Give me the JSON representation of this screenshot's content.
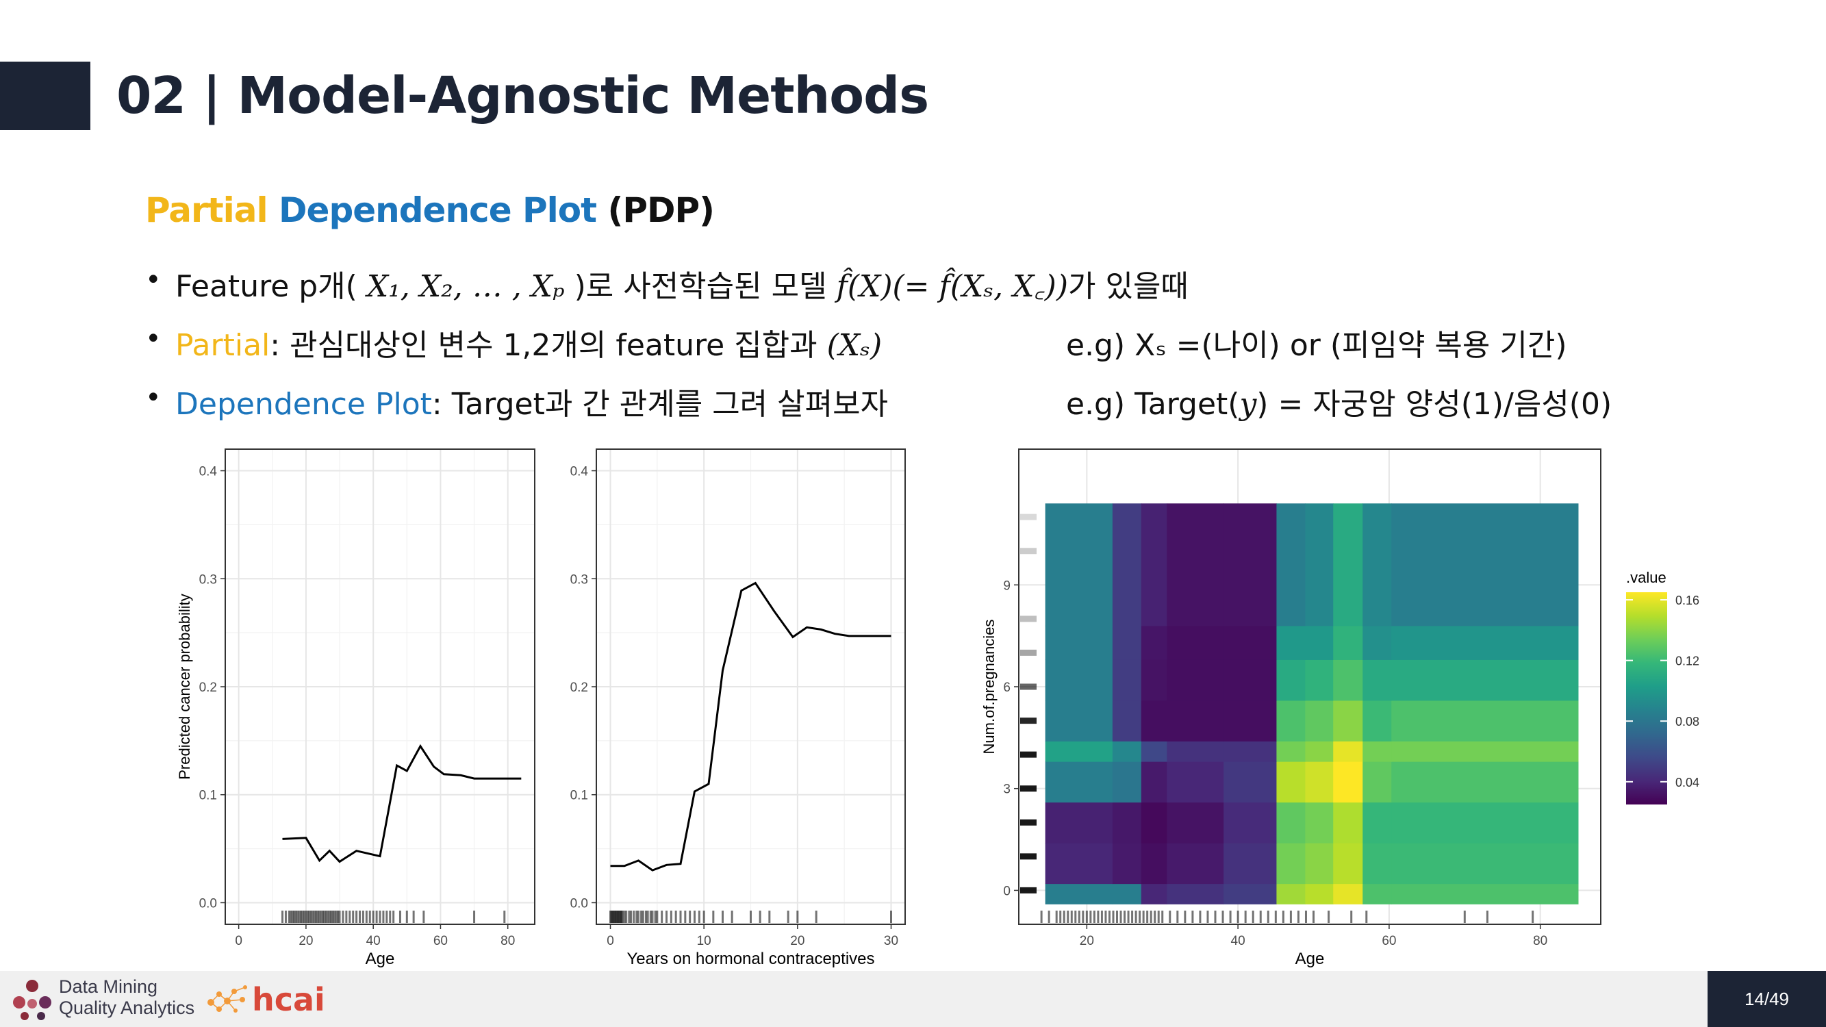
{
  "slide": {
    "title": "02 | Model-Agnostic Methods",
    "subtitle": {
      "part1": "Partial",
      "part2": "Dependence Plot",
      "part3": "(PDP)"
    },
    "colors": {
      "navy": "#1c2435",
      "yellow": "#f2b619",
      "blue": "#1c75bc"
    },
    "bullets": {
      "b1": {
        "prefix": "Feature p개(",
        "math1": "X₁, X₂, … , Xₚ",
        "mid": ")로 사전학습된 모델",
        "math2": "f̂(X)(= f̂(Xₛ, X꜀))",
        "suffix": "가 있을때"
      },
      "b2": {
        "key": "Partial",
        "text": ": 관심대상인 변수 1,2개의 feature 집합과",
        "math": "(Xₛ)",
        "eg": "e.g)  Xₛ =(나이) or (피임약 복용 기간)"
      },
      "b3": {
        "key": "Dependence Plot",
        "text": ": Target과 간 관계를 그려 살펴보자",
        "eg_pre": "e.g) Target(",
        "eg_math": "y",
        "eg_post": ") = 자궁암 양성(1)/음성(0)"
      }
    },
    "bullet_symbol": "•",
    "footer": {
      "logo_line1": "Data Mining",
      "logo_line2": "Quality Analytics",
      "logo2": "hcai",
      "page": "14/49"
    }
  },
  "chart_data": [
    {
      "type": "line",
      "xlabel": "Age",
      "ylabel": "Predicted cancer probability",
      "xlim": [
        -4,
        88
      ],
      "ylim": [
        -0.02,
        0.42
      ],
      "xticks": [
        0,
        20,
        40,
        60,
        80
      ],
      "yticks": [
        0.0,
        0.1,
        0.2,
        0.3,
        0.4
      ],
      "xtick_labels": [
        "0",
        "20",
        "40",
        "60",
        "80"
      ],
      "ytick_labels": [
        "0.0",
        "0.1",
        "0.2",
        "0.3",
        "0.4"
      ],
      "x": [
        13,
        20,
        24,
        27,
        30,
        35,
        42,
        47,
        50,
        54,
        58,
        61,
        66,
        70,
        75,
        84
      ],
      "y": [
        0.059,
        0.06,
        0.039,
        0.048,
        0.038,
        0.048,
        0.043,
        0.127,
        0.122,
        0.145,
        0.126,
        0.119,
        0.118,
        0.115,
        0.115,
        0.115
      ],
      "rug": [
        13,
        14,
        15,
        15.5,
        16,
        16.5,
        17,
        17.5,
        18,
        18.5,
        19,
        19.5,
        20,
        20.5,
        21,
        21.5,
        22,
        22.5,
        23,
        23.5,
        24,
        24.5,
        25,
        25.5,
        26,
        26.5,
        27,
        27.5,
        28,
        28.5,
        29,
        29.5,
        30,
        31,
        32,
        33,
        34,
        35,
        36,
        37,
        38,
        39,
        40,
        41,
        42,
        43,
        44,
        45,
        46,
        48,
        50,
        52,
        55,
        70,
        79
      ],
      "grid": true
    },
    {
      "type": "line",
      "xlabel": "Years on hormonal contraceptives",
      "ylabel": "",
      "xlim": [
        -1.5,
        31.5
      ],
      "ylim": [
        -0.02,
        0.42
      ],
      "xticks": [
        0,
        10,
        20,
        30
      ],
      "yticks": [
        0.0,
        0.1,
        0.2,
        0.3,
        0.4
      ],
      "xtick_labels": [
        "0",
        "10",
        "20",
        "30"
      ],
      "ytick_labels": [
        "0.0",
        "0.1",
        "0.2",
        "0.3",
        "0.4"
      ],
      "x": [
        0,
        1.5,
        3,
        4.5,
        6,
        7.5,
        9,
        10.5,
        12,
        14,
        15.5,
        17.5,
        19.5,
        21,
        22.5,
        24,
        25.5,
        28,
        30
      ],
      "y": [
        0.034,
        0.034,
        0.039,
        0.03,
        0.035,
        0.036,
        0.103,
        0.11,
        0.215,
        0.289,
        0.296,
        0.27,
        0.246,
        0.255,
        0.253,
        0.249,
        0.247,
        0.247,
        0.247
      ],
      "rug": [
        0,
        0.1,
        0.2,
        0.3,
        0.4,
        0.5,
        0.6,
        0.7,
        0.8,
        0.9,
        1,
        1.1,
        1.2,
        1.3,
        1.5,
        1.7,
        2,
        2.2,
        2.5,
        2.8,
        3,
        3.3,
        3.5,
        3.8,
        4,
        4.3,
        4.5,
        4.8,
        5,
        5.5,
        6,
        6.5,
        7,
        7.5,
        8,
        8.5,
        9,
        9.5,
        10,
        11,
        12,
        13,
        15,
        16,
        17,
        19,
        20,
        22,
        30
      ],
      "grid": true
    },
    {
      "type": "heatmap",
      "xlabel": "Age",
      "ylabel": "Num.of.pregnancies",
      "xlim": [
        11,
        88
      ],
      "ylim": [
        -1,
        13
      ],
      "xticks": [
        20,
        40,
        60,
        80
      ],
      "yticks": [
        0,
        3,
        6,
        9
      ],
      "xtick_labels": [
        "20",
        "40",
        "60",
        "80"
      ],
      "ytick_labels": [
        "0",
        "3",
        "6",
        "9"
      ],
      "x_edges": [
        14.5,
        23.4,
        27.2,
        30.6,
        38.1,
        45.1,
        48.9,
        52.6,
        56.5,
        60.3,
        85
      ],
      "y_edges": [
        -0.4,
        0.2,
        1.4,
        2.6,
        3.8,
        4.4,
        5.6,
        6.8,
        7.8,
        11.4
      ],
      "rows": [
        {
          "y": [
            -0.4,
            0.2
          ],
          "values": [
            0.085,
            0.085,
            0.04,
            0.045,
            0.05,
            0.145,
            0.15,
            0.16,
            0.125,
            0.125
          ]
        },
        {
          "y": [
            0.2,
            1.4
          ],
          "values": [
            0.04,
            0.035,
            0.03,
            0.035,
            0.045,
            0.135,
            0.14,
            0.15,
            0.12,
            0.12
          ]
        },
        {
          "y": [
            1.4,
            2.6
          ],
          "values": [
            0.038,
            0.034,
            0.028,
            0.032,
            0.042,
            0.13,
            0.135,
            0.148,
            0.118,
            0.118
          ]
        },
        {
          "y": [
            2.6,
            3.8
          ],
          "values": [
            0.085,
            0.08,
            0.035,
            0.04,
            0.048,
            0.15,
            0.155,
            0.165,
            0.13,
            0.125
          ]
        },
        {
          "y": [
            3.8,
            4.4
          ],
          "values": [
            0.105,
            0.09,
            0.055,
            0.045,
            0.045,
            0.135,
            0.14,
            0.16,
            0.135,
            0.135
          ]
        },
        {
          "y": [
            4.4,
            5.6
          ],
          "values": [
            0.085,
            0.05,
            0.03,
            0.03,
            0.03,
            0.125,
            0.13,
            0.14,
            0.12,
            0.125
          ]
        },
        {
          "y": [
            5.6,
            6.8
          ],
          "values": [
            0.085,
            0.05,
            0.032,
            0.03,
            0.03,
            0.11,
            0.115,
            0.125,
            0.11,
            0.11
          ]
        },
        {
          "y": [
            6.8,
            7.8
          ],
          "values": [
            0.085,
            0.05,
            0.033,
            0.03,
            0.03,
            0.1,
            0.1,
            0.115,
            0.095,
            0.098
          ]
        },
        {
          "y": [
            7.8,
            11.4
          ],
          "values": [
            0.085,
            0.05,
            0.038,
            0.032,
            0.032,
            0.085,
            0.09,
            0.11,
            0.09,
            0.085
          ]
        }
      ],
      "legend": {
        "title": ".value",
        "ticks": [
          0.04,
          0.08,
          0.12,
          0.16
        ],
        "tick_labels": [
          "0.04",
          "0.08",
          "0.12",
          "0.16"
        ],
        "min": 0.025,
        "max": 0.165,
        "placement": "right"
      },
      "rug_x": [
        14,
        15,
        16,
        16.5,
        17,
        17.5,
        18,
        18.5,
        19,
        19.5,
        20,
        20.5,
        21,
        21.5,
        22,
        22.5,
        23,
        23.5,
        24,
        24.5,
        25,
        25.5,
        26,
        26.5,
        27,
        27.5,
        28,
        28.5,
        29,
        29.5,
        30,
        31,
        32,
        33,
        34,
        35,
        36,
        37,
        38,
        39,
        40,
        41,
        42,
        43,
        44,
        45,
        46,
        47,
        48,
        49,
        50,
        52,
        55,
        57,
        70,
        73,
        79
      ],
      "rug_y": [
        0,
        1,
        2,
        3,
        4,
        5,
        6,
        7,
        8,
        10,
        11
      ],
      "rug_y_strength": [
        0.9,
        0.9,
        0.9,
        0.9,
        0.9,
        0.85,
        0.6,
        0.35,
        0.25,
        0.2,
        0.15
      ],
      "grid": true
    }
  ]
}
